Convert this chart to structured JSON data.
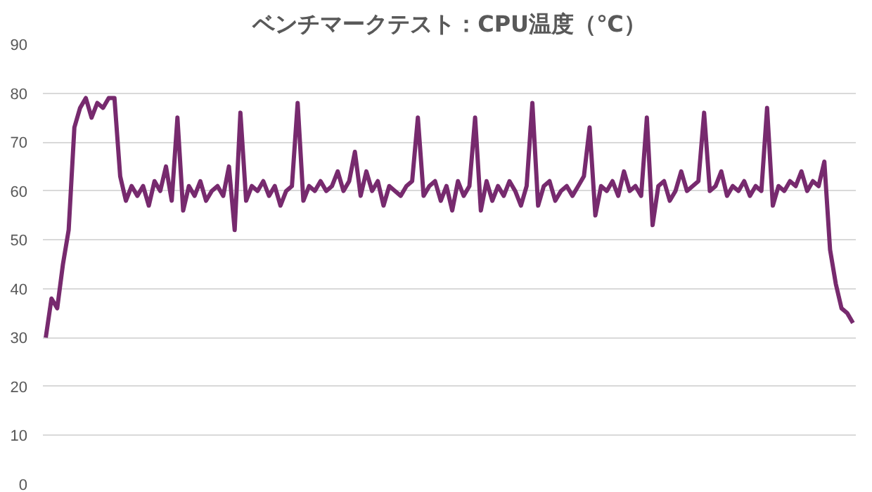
{
  "chart_data": {
    "type": "line",
    "title": "ベンチマークテスト：CPU温度（℃）",
    "categories": [
      null,
      null,
      null,
      null,
      null,
      null,
      null,
      null,
      null,
      null,
      null,
      null,
      null,
      null,
      null,
      null,
      null,
      null,
      null,
      null,
      null,
      null,
      null,
      null,
      null,
      null,
      null,
      null,
      null,
      null,
      null,
      null,
      null,
      null,
      null,
      null,
      null,
      null,
      null,
      null,
      null,
      null,
      null,
      null,
      null,
      null,
      null,
      null,
      null,
      null,
      null,
      null,
      null,
      null,
      null,
      null,
      null,
      null,
      null,
      null,
      null,
      null,
      null,
      null,
      null,
      null,
      null,
      null,
      null,
      null,
      null,
      null,
      null,
      null,
      null,
      null,
      null,
      null,
      null,
      null,
      null,
      null,
      null,
      null,
      null,
      null,
      null,
      null,
      null,
      null,
      null,
      null,
      null,
      null,
      null,
      null,
      null,
      null,
      null,
      null,
      null,
      null,
      null,
      null,
      null,
      null,
      null,
      null,
      null,
      null,
      null,
      null,
      null,
      null,
      null,
      null,
      null,
      null,
      null,
      null,
      null,
      null,
      null,
      null,
      null,
      null,
      null,
      null,
      null,
      null,
      null,
      null,
      null,
      null,
      null,
      null,
      null,
      null,
      null,
      null,
      null,
      null
    ],
    "series": [
      {
        "color": "#772a6e",
        "values": [
          30,
          38,
          36,
          45,
          52,
          73,
          77,
          79,
          75,
          78,
          77,
          79,
          79,
          63,
          58,
          61,
          59,
          61,
          57,
          62,
          60,
          65,
          58,
          75,
          56,
          61,
          59,
          62,
          58,
          60,
          61,
          59,
          65,
          52,
          76,
          58,
          61,
          60,
          62,
          59,
          61,
          57,
          60,
          61,
          78,
          58,
          61,
          60,
          62,
          60,
          61,
          64,
          60,
          62,
          68,
          59,
          64,
          60,
          62,
          57,
          61,
          60,
          59,
          61,
          62,
          75,
          59,
          61,
          62,
          58,
          61,
          56,
          62,
          59,
          61,
          75,
          56,
          62,
          58,
          61,
          59,
          62,
          60,
          57,
          61,
          78,
          57,
          61,
          62,
          58,
          60,
          61,
          59,
          61,
          63,
          73,
          55,
          61,
          60,
          62,
          59,
          64,
          60,
          61,
          59,
          75,
          53,
          61,
          62,
          58,
          60,
          64,
          60,
          61,
          62,
          76,
          60,
          61,
          64,
          59,
          61,
          60,
          62,
          59,
          61,
          60,
          77,
          57,
          61,
          60,
          62,
          61,
          64,
          60,
          62,
          61,
          66,
          48,
          41,
          36,
          35,
          33
        ]
      }
    ],
    "ylim": [
      0,
      90
    ],
    "yticks": [
      0,
      10,
      20,
      30,
      40,
      50,
      60,
      70,
      80,
      90
    ],
    "grid": "y",
    "tick_labels": "y",
    "marker": "none",
    "line_style": "solid"
  }
}
